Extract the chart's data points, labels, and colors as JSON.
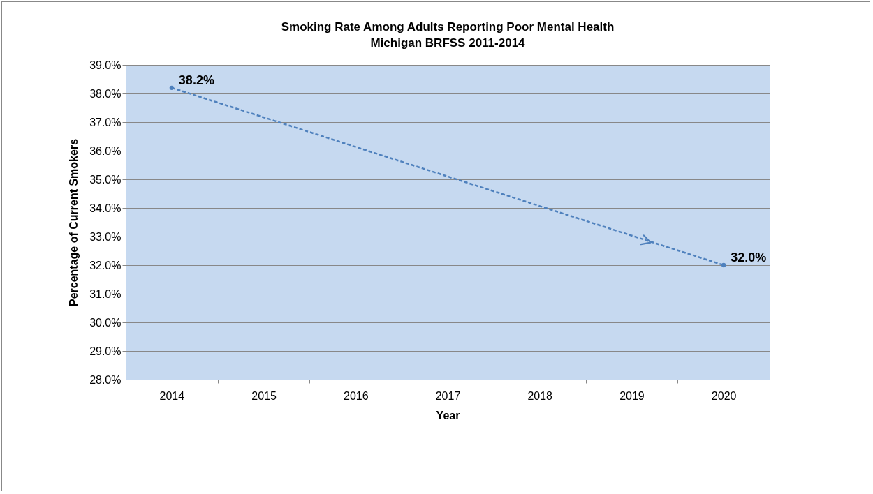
{
  "chart_data": {
    "type": "line",
    "title": "Smoking Rate Among Adults Reporting Poor Mental Health",
    "subtitle": "Michigan BRFSS 2011-2014",
    "xlabel": "Year",
    "ylabel": "Percentage of Current Smokers",
    "categories": [
      "2014",
      "2015",
      "2016",
      "2017",
      "2018",
      "2019",
      "2020"
    ],
    "series": [
      {
        "color": "#4f81bd",
        "values": [
          38.2,
          null,
          null,
          null,
          null,
          null,
          32.0
        ],
        "value_labels": [
          "38.2%",
          null,
          null,
          null,
          null,
          null,
          "32.0%"
        ]
      }
    ],
    "ylim": [
      28,
      39
    ],
    "yticks": [
      {
        "value": 28,
        "label": "28.0%"
      },
      {
        "value": 29,
        "label": "29.0%"
      },
      {
        "value": 30,
        "label": "30.0%"
      },
      {
        "value": 31,
        "label": "31.0%"
      },
      {
        "value": 32,
        "label": "32.0%"
      },
      {
        "value": 33,
        "label": "33.0%"
      },
      {
        "value": 34,
        "label": "34.0%"
      },
      {
        "value": 35,
        "label": "35.0%"
      },
      {
        "value": 36,
        "label": "36.0%"
      },
      {
        "value": 37,
        "label": "37.0%"
      },
      {
        "value": 38,
        "label": "38.0%"
      },
      {
        "value": 39,
        "label": "39.0%"
      }
    ],
    "grid": "y",
    "marker": "circle",
    "line_style": "dashed"
  }
}
